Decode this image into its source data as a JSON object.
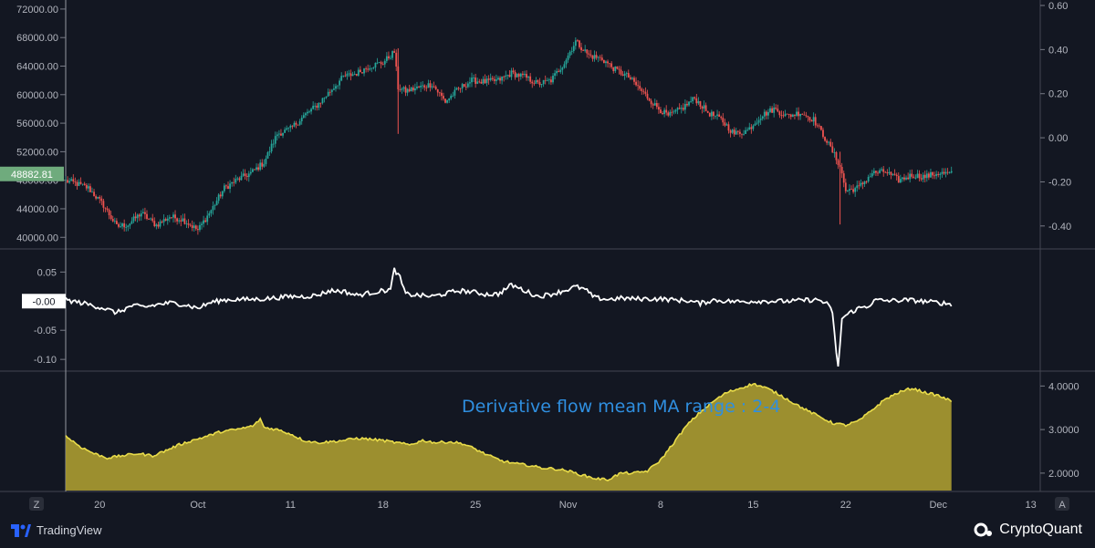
{
  "chart_data": [
    {
      "type": "candlestick",
      "title": "",
      "price_axis": {
        "ticks": [
          "72000.00",
          "68000.00",
          "64000.00",
          "60000.00",
          "56000.00",
          "52000.00",
          "48000.00",
          "44000.00",
          "40000.00"
        ],
        "range": [
          38500,
          72500
        ]
      },
      "secondary_axis": {
        "ticks": [
          "0.60",
          "0.40",
          "0.20",
          "0.00",
          "-0.20",
          "-0.40"
        ],
        "range": [
          -0.5,
          0.6
        ]
      },
      "last_price_label": "48882.81",
      "close_path": [
        [
          0,
          47900
        ],
        [
          5,
          47600
        ],
        [
          12,
          46900
        ],
        [
          20,
          44500
        ],
        [
          27,
          41500
        ],
        [
          33,
          41800
        ],
        [
          40,
          43400
        ],
        [
          48,
          41700
        ],
        [
          55,
          42900
        ],
        [
          62,
          42500
        ],
        [
          70,
          41000
        ],
        [
          77,
          43800
        ],
        [
          84,
          46900
        ],
        [
          91,
          48100
        ],
        [
          98,
          49000
        ],
        [
          105,
          50500
        ],
        [
          112,
          54500
        ],
        [
          119,
          55200
        ],
        [
          126,
          57000
        ],
        [
          133,
          58500
        ],
        [
          140,
          60500
        ],
        [
          147,
          62500
        ],
        [
          154,
          63000
        ],
        [
          161,
          64000
        ],
        [
          168,
          64500
        ],
        [
          174,
          66000
        ],
        [
          176,
          61000
        ],
        [
          180,
          60500
        ],
        [
          187,
          61000
        ],
        [
          194,
          61500
        ],
        [
          201,
          59000
        ],
        [
          208,
          60800
        ],
        [
          215,
          62000
        ],
        [
          222,
          61800
        ],
        [
          229,
          62000
        ],
        [
          236,
          63000
        ],
        [
          243,
          62500
        ],
        [
          250,
          61500
        ],
        [
          257,
          62000
        ],
        [
          264,
          64500
        ],
        [
          270,
          67500
        ],
        [
          277,
          65500
        ],
        [
          284,
          65000
        ],
        [
          291,
          63500
        ],
        [
          298,
          62500
        ],
        [
          305,
          60500
        ],
        [
          312,
          58500
        ],
        [
          319,
          57000
        ],
        [
          326,
          58000
        ],
        [
          333,
          59500
        ],
        [
          340,
          57500
        ],
        [
          347,
          56500
        ],
        [
          354,
          54500
        ],
        [
          361,
          55000
        ],
        [
          368,
          57000
        ],
        [
          375,
          58000
        ],
        [
          382,
          57000
        ],
        [
          389,
          57500
        ],
        [
          396,
          56500
        ],
        [
          403,
          53500
        ],
        [
          410,
          50000
        ],
        [
          413,
          46500
        ],
        [
          420,
          47000
        ],
        [
          427,
          49000
        ],
        [
          434,
          49200
        ],
        [
          441,
          48000
        ],
        [
          448,
          48700
        ],
        [
          455,
          48500
        ],
        [
          462,
          49000
        ],
        [
          469,
          48882
        ]
      ],
      "candle_count": 470
    },
    {
      "type": "line",
      "series_color": "#ffffff",
      "axis_ticks": [
        "0.05",
        "-0.05",
        "-0.10"
      ],
      "range": [
        -0.117,
        0.085
      ],
      "last_value_label": "-0.00",
      "values_path": [
        [
          0,
          0.002
        ],
        [
          10,
          -0.004
        ],
        [
          20,
          -0.012
        ],
        [
          27,
          -0.02
        ],
        [
          35,
          -0.008
        ],
        [
          42,
          -0.01
        ],
        [
          50,
          -0.005
        ],
        [
          56,
          -0.003
        ],
        [
          63,
          -0.006
        ],
        [
          70,
          -0.012
        ],
        [
          77,
          -0.002
        ],
        [
          84,
          0.002
        ],
        [
          91,
          0.003
        ],
        [
          98,
          0.003
        ],
        [
          105,
          0.004
        ],
        [
          112,
          0.006
        ],
        [
          119,
          0.008
        ],
        [
          126,
          0.008
        ],
        [
          133,
          0.01
        ],
        [
          140,
          0.018
        ],
        [
          147,
          0.017
        ],
        [
          154,
          0.01
        ],
        [
          161,
          0.014
        ],
        [
          168,
          0.018
        ],
        [
          172,
          0.02
        ],
        [
          174,
          0.055
        ],
        [
          177,
          0.04
        ],
        [
          180,
          0.012
        ],
        [
          187,
          0.01
        ],
        [
          194,
          0.008
        ],
        [
          201,
          0.013
        ],
        [
          208,
          0.018
        ],
        [
          215,
          0.016
        ],
        [
          222,
          0.012
        ],
        [
          229,
          0.012
        ],
        [
          236,
          0.028
        ],
        [
          243,
          0.018
        ],
        [
          250,
          0.008
        ],
        [
          257,
          0.012
        ],
        [
          264,
          0.018
        ],
        [
          270,
          0.025
        ],
        [
          275,
          0.02
        ],
        [
          280,
          0.006
        ],
        [
          287,
          0.003
        ],
        [
          294,
          0.005
        ],
        [
          301,
          0.004
        ],
        [
          308,
          0.004
        ],
        [
          315,
          0.004
        ],
        [
          322,
          0.002
        ],
        [
          329,
          0.001
        ],
        [
          336,
          -0.004
        ],
        [
          343,
          0.002
        ],
        [
          350,
          0.0
        ],
        [
          357,
          -0.001
        ],
        [
          364,
          0.0
        ],
        [
          371,
          0.0
        ],
        [
          378,
          0.0
        ],
        [
          385,
          0.0
        ],
        [
          392,
          0.002
        ],
        [
          399,
          0.002
        ],
        [
          403,
          -0.005
        ],
        [
          406,
          -0.018
        ],
        [
          408,
          -0.09
        ],
        [
          409,
          -0.115
        ],
        [
          411,
          -0.03
        ],
        [
          415,
          -0.02
        ],
        [
          420,
          -0.012
        ],
        [
          425,
          -0.008
        ],
        [
          429,
          0.002
        ],
        [
          432,
          0.001
        ],
        [
          439,
          0.001
        ],
        [
          446,
          0.002
        ],
        [
          453,
          0.0
        ],
        [
          460,
          -0.002
        ],
        [
          469,
          -0.005
        ]
      ],
      "point_count": 470
    },
    {
      "type": "area",
      "series_color": "#c8b42e",
      "axis_ticks": [
        "4.0000",
        "3.0000",
        "2.0000"
      ],
      "range": [
        1.6,
        4.3
      ],
      "annotation": "Derivative flow mean MA range : 2-4",
      "values_path": [
        [
          0,
          2.85
        ],
        [
          8,
          2.6
        ],
        [
          15,
          2.45
        ],
        [
          22,
          2.35
        ],
        [
          30,
          2.4
        ],
        [
          38,
          2.45
        ],
        [
          46,
          2.4
        ],
        [
          52,
          2.5
        ],
        [
          60,
          2.65
        ],
        [
          67,
          2.75
        ],
        [
          75,
          2.85
        ],
        [
          82,
          2.95
        ],
        [
          90,
          3.0
        ],
        [
          96,
          3.05
        ],
        [
          100,
          3.1
        ],
        [
          103,
          3.25
        ],
        [
          105,
          3.05
        ],
        [
          112,
          3.0
        ],
        [
          119,
          2.9
        ],
        [
          126,
          2.75
        ],
        [
          133,
          2.7
        ],
        [
          140,
          2.72
        ],
        [
          147,
          2.75
        ],
        [
          154,
          2.8
        ],
        [
          161,
          2.78
        ],
        [
          168,
          2.75
        ],
        [
          175,
          2.7
        ],
        [
          182,
          2.65
        ],
        [
          189,
          2.75
        ],
        [
          196,
          2.7
        ],
        [
          203,
          2.72
        ],
        [
          210,
          2.68
        ],
        [
          217,
          2.55
        ],
        [
          224,
          2.4
        ],
        [
          231,
          2.28
        ],
        [
          238,
          2.22
        ],
        [
          245,
          2.18
        ],
        [
          252,
          2.12
        ],
        [
          259,
          2.1
        ],
        [
          266,
          2.05
        ],
        [
          273,
          1.96
        ],
        [
          280,
          1.88
        ],
        [
          287,
          1.85
        ],
        [
          294,
          2.0
        ],
        [
          301,
          2.0
        ],
        [
          308,
          2.05
        ],
        [
          315,
          2.3
        ],
        [
          322,
          2.7
        ],
        [
          329,
          3.1
        ],
        [
          336,
          3.4
        ],
        [
          343,
          3.65
        ],
        [
          350,
          3.85
        ],
        [
          357,
          3.95
        ],
        [
          364,
          4.05
        ],
        [
          371,
          3.95
        ],
        [
          378,
          3.8
        ],
        [
          385,
          3.62
        ],
        [
          392,
          3.45
        ],
        [
          399,
          3.3
        ],
        [
          406,
          3.15
        ],
        [
          413,
          3.1
        ],
        [
          420,
          3.2
        ],
        [
          427,
          3.45
        ],
        [
          434,
          3.7
        ],
        [
          441,
          3.85
        ],
        [
          448,
          3.95
        ],
        [
          455,
          3.85
        ],
        [
          462,
          3.78
        ],
        [
          469,
          3.65
        ]
      ],
      "point_count": 470
    }
  ],
  "x_axis": {
    "ticks": [
      {
        "label": "20",
        "t": 18
      },
      {
        "label": "Oct",
        "t": 70
      },
      {
        "label": "11",
        "t": 119
      },
      {
        "label": "18",
        "t": 168
      },
      {
        "label": "25",
        "t": 217
      },
      {
        "label": "Nov",
        "t": 266
      },
      {
        "label": "8",
        "t": 315
      },
      {
        "label": "15",
        "t": 364
      },
      {
        "label": "22",
        "t": 413
      },
      {
        "label": "Dec",
        "t": 462
      },
      {
        "label": "13",
        "t": 511
      }
    ],
    "visible_t_max": 469,
    "total_t_span": 516
  },
  "crosshair_t": 0,
  "corner_labels": {
    "left": "Z",
    "right": "A"
  },
  "branding": {
    "left": "TradingView",
    "right": "CryptoQuant"
  },
  "colors": {
    "background": "#131722",
    "candle_up": "#26a69a",
    "candle_down": "#ef5350",
    "price_badge": "#6fab7d",
    "annotation": "#2f8fe0"
  }
}
